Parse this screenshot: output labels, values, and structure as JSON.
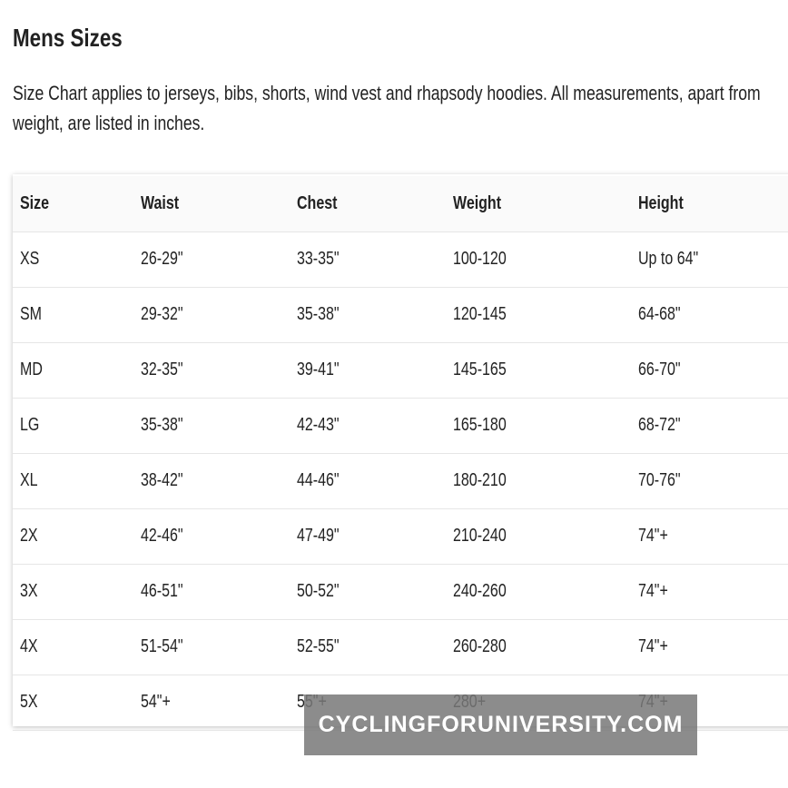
{
  "header": {
    "title": "Mens Sizes",
    "description": "Size Chart applies to jerseys, bibs, shorts, wind vest and rhapsody hoodies. All measurements, apart from weight, are listed in inches."
  },
  "table": {
    "columns": [
      "Size",
      "Waist",
      "Chest",
      "Weight",
      "Height"
    ],
    "rows": [
      [
        "XS",
        "26-29\"",
        "33-35\"",
        "100-120",
        "Up to 64\""
      ],
      [
        "SM",
        "29-32\"",
        "35-38\"",
        "120-145",
        "64-68\""
      ],
      [
        "MD",
        "32-35\"",
        "39-41\"",
        "145-165",
        "66-70\""
      ],
      [
        "LG",
        "35-38\"",
        "42-43\"",
        "165-180",
        "68-72\""
      ],
      [
        "XL",
        "38-42\"",
        "44-46\"",
        "180-210",
        "70-76\""
      ],
      [
        "2X",
        "42-46\"",
        "47-49\"",
        "210-240",
        "74\"+"
      ],
      [
        "3X",
        "46-51\"",
        "50-52\"",
        "240-260",
        "74\"+"
      ],
      [
        "4X",
        "51-54\"",
        "52-55\"",
        "260-280",
        "74\"+"
      ],
      [
        "5X",
        "54\"+",
        "55\"+",
        "280+",
        "74\"+"
      ]
    ]
  },
  "watermark": "CYCLINGFORUNIVERSITY.COM"
}
